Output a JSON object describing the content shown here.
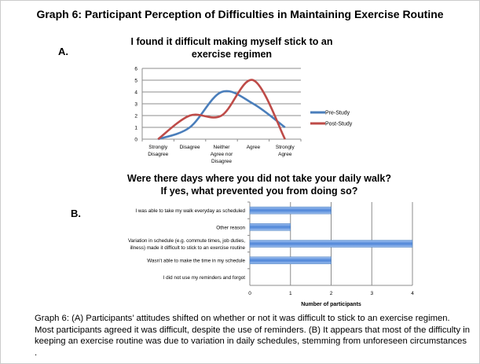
{
  "title": "Graph 6: Participant Perception of Difficulties in Maintaining Exercise Routine",
  "panel_a_label": "A.",
  "panel_b_label": "B.",
  "caption": "Graph 6: (A) Participants’ attitudes shifted on whether or not it was difficult to stick to an exercise regimen. Most participants agreed it was difficult, despite the use of reminders. (B) It appears that most of the difficulty in keeping an exercise routine was due to variation in daily schedules, stemming from unforeseen circumstances .",
  "chart_data": [
    {
      "type": "line",
      "title": "I found it difficult making myself stick to an exercise regimen",
      "categories": [
        "Strongly Disagree",
        "Disagree",
        "Neither Agree nor Disagree",
        "Agree",
        "Strongly Agree"
      ],
      "series": [
        {
          "name": "Pre-Study",
          "values": [
            0,
            1,
            4,
            3,
            1
          ],
          "color": "#4a7ebb"
        },
        {
          "name": "Post-Study",
          "values": [
            0,
            2,
            2,
            5,
            0
          ],
          "color": "#be4b48"
        }
      ],
      "ylim": [
        0,
        6
      ],
      "yticks": [
        0,
        1,
        2,
        3,
        4,
        5,
        6
      ],
      "grid": true,
      "smooth": true,
      "legend": "right"
    },
    {
      "type": "bar",
      "orientation": "horizontal",
      "title": "Were there days where you did not take your daily walk? If yes, what prevented you from doing so?",
      "categories": [
        "I was able to take my walk everyday as scheduled",
        "Other reason",
        "Variation in schedule (e.g. commute times, job duties, illness) made it difficult to stick to an exercise routine",
        "Wasn’t able to make the time in my schedule",
        "I did not use my reminders and forgot"
      ],
      "values": [
        2,
        1,
        4,
        2,
        0
      ],
      "xlabel": "Number of participants",
      "xlim": [
        0,
        4
      ],
      "xticks": [
        0,
        1,
        2,
        3,
        4
      ],
      "grid": true,
      "color": "#6f9de0"
    }
  ]
}
